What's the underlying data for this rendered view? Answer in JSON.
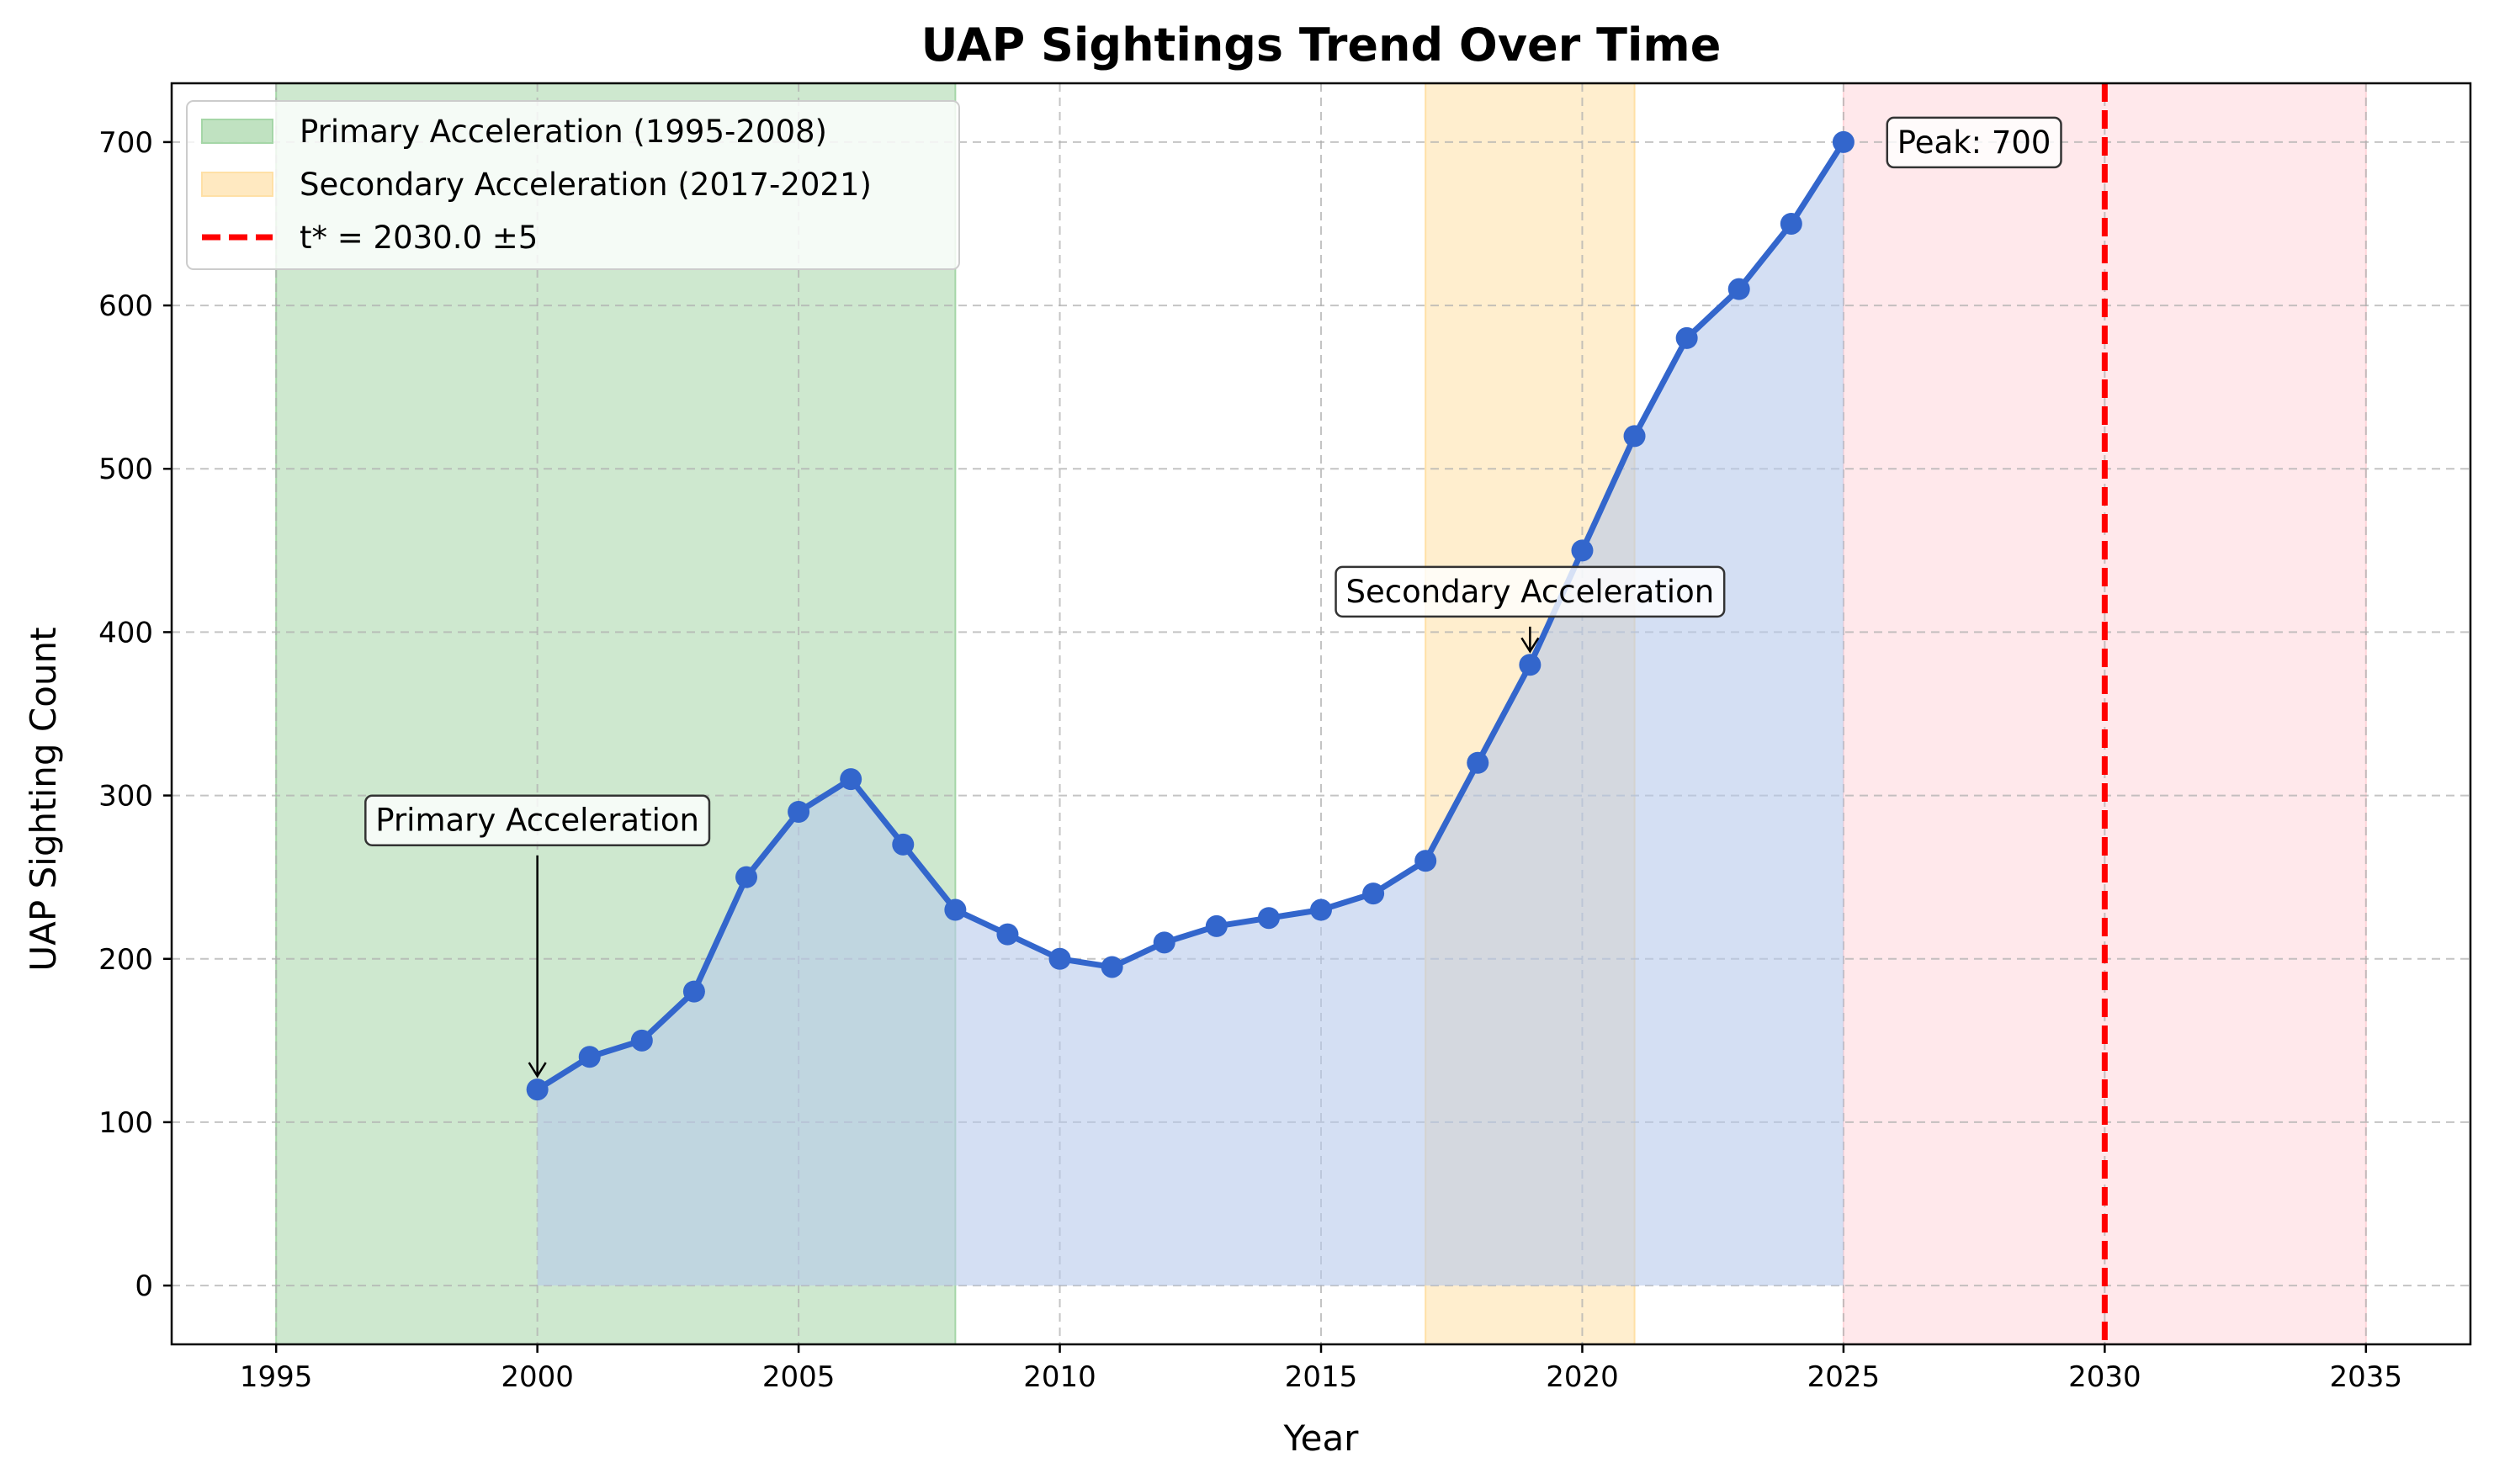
{
  "chart_data": {
    "type": "line",
    "title": "UAP Sightings Trend Over Time",
    "xlabel": "Year",
    "ylabel": "UAP Sighting Count",
    "xlim": [
      1993,
      2037
    ],
    "ylim": [
      -36,
      736
    ],
    "x_ticks": [
      1995,
      2000,
      2005,
      2010,
      2015,
      2020,
      2025,
      2030,
      2035
    ],
    "y_ticks": [
      0,
      100,
      200,
      300,
      400,
      500,
      600,
      700
    ],
    "grid": true,
    "legend_position": "top-left",
    "series": [
      {
        "color": "#3366cc",
        "fill_color": "#b8c9eb",
        "x": [
          2000,
          2001,
          2002,
          2003,
          2004,
          2005,
          2006,
          2007,
          2008,
          2009,
          2010,
          2011,
          2012,
          2013,
          2014,
          2015,
          2016,
          2017,
          2018,
          2019,
          2020,
          2021,
          2022,
          2023,
          2024,
          2025
        ],
        "y": [
          120,
          140,
          150,
          180,
          250,
          290,
          310,
          270,
          230,
          215,
          200,
          195,
          210,
          220,
          225,
          230,
          240,
          260,
          320,
          380,
          450,
          520,
          580,
          610,
          650,
          700
        ]
      }
    ],
    "regions": [
      {
        "label": "Primary Acceleration (1995-2008)",
        "x_start": 1995,
        "x_end": 2008,
        "color": "#a5d6a7"
      },
      {
        "label": "Secondary Acceleration (2017-2021)",
        "x_start": 2017,
        "x_end": 2021,
        "color": "#ffe0a6"
      },
      {
        "label": "",
        "x_start": 2025,
        "x_end": 2035,
        "color": "#ffd6da"
      }
    ],
    "vline": {
      "label": "t* = 2030.0 ±5",
      "x": 2030,
      "color": "#ff0000"
    },
    "annotations": [
      {
        "text": "Primary Acceleration",
        "x": 2000,
        "y": 120,
        "text_x": 2000,
        "text_y": 285
      },
      {
        "text": "Secondary Acceleration",
        "x": 2019,
        "y": 380,
        "text_x": 2019,
        "text_y": 425
      },
      {
        "text": "Peak: 700",
        "x": 2025,
        "y": 700,
        "text_x": 2027.5,
        "text_y": 700
      }
    ]
  }
}
